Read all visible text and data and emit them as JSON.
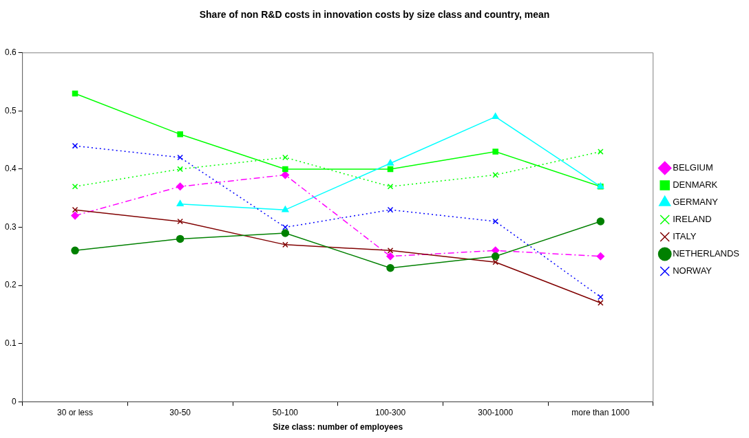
{
  "chart_data": {
    "type": "line",
    "title": "Share of non R&D costs in innovation costs by size class and country, mean",
    "xlabel": "Size class: number of employees",
    "categories": [
      "30 or less",
      "30-50",
      "50-100",
      "100-300",
      "300-1000",
      "more than 1000"
    ],
    "series": [
      {
        "name": "BELGIUM",
        "color": "#ff00ff",
        "marker": "diamond",
        "line_style": "dashed",
        "values": [
          0.32,
          0.37,
          0.39,
          0.25,
          0.26,
          0.25
        ]
      },
      {
        "name": "DENMARK",
        "color": "#00ff00",
        "marker": "square",
        "line_style": "solid",
        "values": [
          0.53,
          0.46,
          0.4,
          0.4,
          0.43,
          0.37
        ]
      },
      {
        "name": "GERMANY",
        "color": "#00ffff",
        "marker": "triangle",
        "line_style": "solid",
        "values": [
          null,
          0.34,
          0.33,
          0.41,
          0.49,
          0.37
        ]
      },
      {
        "name": "IRELAND",
        "color": "#00ff00",
        "marker": "cross",
        "line_style": "dotted",
        "values": [
          0.37,
          0.4,
          0.42,
          0.37,
          0.39,
          0.43
        ]
      },
      {
        "name": "ITALY",
        "color": "#800000",
        "marker": "cross",
        "line_style": "solid",
        "values": [
          0.33,
          0.31,
          0.27,
          0.26,
          0.24,
          0.17
        ]
      },
      {
        "name": "NETHERLANDS",
        "color": "#008000",
        "marker": "circle",
        "line_style": "solid",
        "values": [
          0.26,
          0.28,
          0.29,
          0.23,
          0.25,
          0.31
        ]
      },
      {
        "name": "NORWAY",
        "color": "#0000ff",
        "marker": "cross",
        "line_style": "dotted",
        "values": [
          0.44,
          0.42,
          0.3,
          0.33,
          0.31,
          0.18
        ]
      }
    ],
    "ylim": [
      0,
      0.6
    ],
    "yticks": [
      0,
      0.1,
      0.2,
      0.3,
      0.4,
      0.5,
      0.6
    ],
    "grid": false,
    "legend": "right"
  }
}
